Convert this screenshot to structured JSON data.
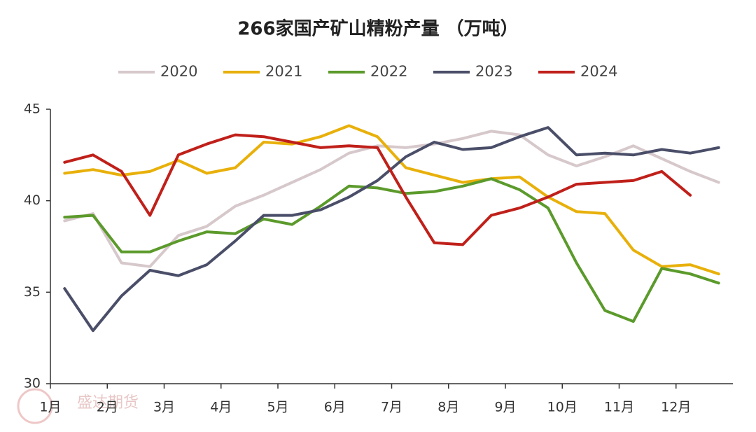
{
  "chart_data": {
    "type": "line",
    "title": "266家国产矿山精粉产量 （万吨）",
    "watermark": "盛达期货",
    "x": [
      1.25,
      1.75,
      2.25,
      2.75,
      3.25,
      3.75,
      4.25,
      4.75,
      5.25,
      5.75,
      6.25,
      6.75,
      7.25,
      7.75,
      8.25,
      8.75,
      9.25,
      9.75,
      10.25,
      10.75,
      11.25,
      11.75,
      12.25,
      12.75
    ],
    "xlim": [
      1,
      13
    ],
    "xticks": [
      {
        "value": 1,
        "label": "1月"
      },
      {
        "value": 2,
        "label": "2月"
      },
      {
        "value": 3,
        "label": "3月"
      },
      {
        "value": 4,
        "label": "4月"
      },
      {
        "value": 5,
        "label": "5月"
      },
      {
        "value": 6,
        "label": "6月"
      },
      {
        "value": 7,
        "label": "7月"
      },
      {
        "value": 8,
        "label": "8月"
      },
      {
        "value": 9,
        "label": "9月"
      },
      {
        "value": 10,
        "label": "10月"
      },
      {
        "value": 11,
        "label": "11月"
      },
      {
        "value": 12,
        "label": "12月"
      }
    ],
    "ylim": [
      30,
      45
    ],
    "yticks": [
      30,
      35,
      40,
      45
    ],
    "legend": "top",
    "series": [
      {
        "name": "2020",
        "color": "#d6c8cb",
        "values": [
          38.9,
          39.3,
          36.6,
          36.4,
          38.1,
          38.6,
          39.7,
          40.3,
          41.0,
          41.7,
          42.6,
          43.0,
          42.9,
          43.1,
          43.4,
          43.8,
          43.6,
          42.5,
          41.9,
          42.4,
          43.0,
          42.3,
          41.6,
          41.0
        ]
      },
      {
        "name": "2021",
        "color": "#e8b00a",
        "values": [
          41.5,
          41.7,
          41.4,
          41.6,
          42.2,
          41.5,
          41.8,
          43.2,
          43.1,
          43.5,
          44.1,
          43.5,
          41.8,
          41.4,
          41.0,
          41.2,
          41.3,
          40.2,
          39.4,
          39.3,
          37.3,
          36.4,
          36.5,
          36.0
        ]
      },
      {
        "name": "2022",
        "color": "#5b9a2b",
        "values": [
          39.1,
          39.2,
          37.2,
          37.2,
          37.8,
          38.3,
          38.2,
          39.0,
          38.7,
          39.7,
          40.8,
          40.7,
          40.4,
          40.5,
          40.8,
          41.2,
          40.6,
          39.6,
          36.6,
          34.0,
          33.4,
          36.3,
          36.0,
          35.5
        ]
      },
      {
        "name": "2023",
        "color": "#4a4e68",
        "values": [
          35.2,
          32.9,
          34.8,
          36.2,
          35.9,
          36.5,
          37.8,
          39.2,
          39.2,
          39.5,
          40.2,
          41.1,
          42.4,
          43.2,
          42.8,
          42.9,
          43.5,
          44.0,
          42.5,
          42.6,
          42.5,
          42.8,
          42.6,
          42.9
        ]
      },
      {
        "name": "2024",
        "color": "#c0201a",
        "values": [
          42.1,
          42.5,
          41.6,
          39.2,
          42.5,
          43.1,
          43.6,
          43.5,
          43.2,
          42.9,
          43.0,
          42.9,
          40.2,
          37.7,
          37.6,
          39.2,
          39.6,
          40.2,
          40.9,
          41.0,
          41.1,
          41.6,
          40.3,
          null
        ]
      }
    ]
  }
}
